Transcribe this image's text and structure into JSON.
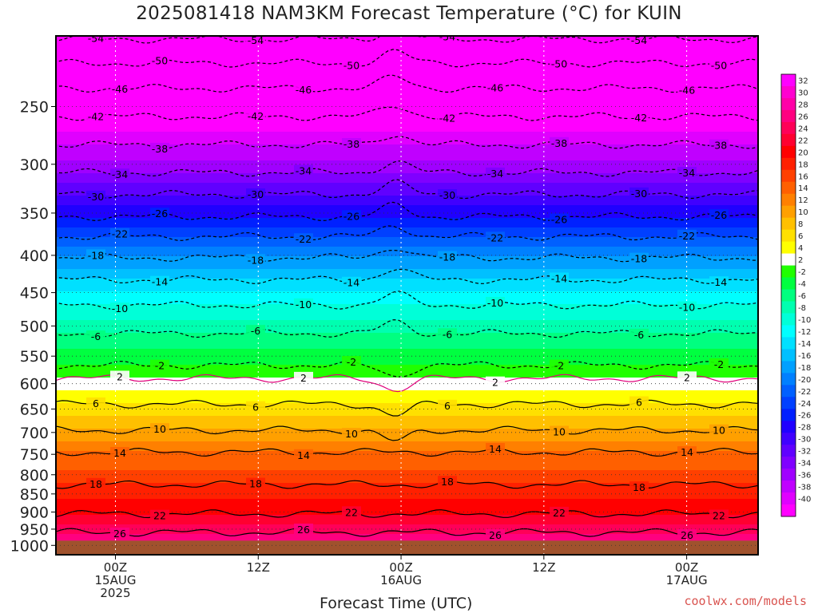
{
  "title": "2025081418 NAM3KM Forecast Temperature (°C) for KUIN",
  "credit": "coolwx.com/models",
  "chart_data": {
    "type": "heatmap",
    "title": "2025081418 NAM3KM Forecast Temperature (°C) for KUIN",
    "xlabel": "Forecast Time (UTC)",
    "ylabel": "",
    "x_range_hours": [
      -5,
      54
    ],
    "y_range_hpa": [
      200,
      1030
    ],
    "y_scale": "log",
    "grid": true,
    "x_ticks": [
      {
        "hour": 0,
        "line1": "00Z",
        "line2": "15AUG",
        "line3": "2025"
      },
      {
        "hour": 12,
        "line1": "12Z",
        "line2": "",
        "line3": ""
      },
      {
        "hour": 24,
        "line1": "00Z",
        "line2": "16AUG",
        "line3": ""
      },
      {
        "hour": 36,
        "line1": "12Z",
        "line2": "",
        "line3": ""
      },
      {
        "hour": 48,
        "line1": "00Z",
        "line2": "17AUG",
        "line3": ""
      }
    ],
    "y_ticks": [
      "250",
      "300",
      "350",
      "400",
      "450",
      "500",
      "550",
      "600",
      "650",
      "700",
      "750",
      "800",
      "850",
      "900",
      "950",
      "1000"
    ],
    "surface_pressure_hpa": 1000,
    "surface_color": "#a0522d",
    "colorbar": {
      "labels": [
        "32",
        "30",
        "28",
        "26",
        "24",
        "22",
        "20",
        "18",
        "16",
        "14",
        "12",
        "10",
        "8",
        "6",
        "4",
        "2",
        "-2",
        "-4",
        "-6",
        "-8",
        "-10",
        "-12",
        "-14",
        "-16",
        "-18",
        "-20",
        "-22",
        "-24",
        "-26",
        "-28",
        "-30",
        "-32",
        "-34",
        "-36",
        "-38",
        "-40"
      ],
      "colors": [
        "#ff00ff",
        "#ff00d0",
        "#ff00a8",
        "#ff0080",
        "#ff0058",
        "#ff0030",
        "#ff0000",
        "#ff2000",
        "#ff4000",
        "#ff6000",
        "#ff8000",
        "#ffa000",
        "#ffc000",
        "#ffe000",
        "#ffff00",
        "#ffffff",
        "#20ff00",
        "#00ff40",
        "#00ff80",
        "#00ffb0",
        "#00ffd8",
        "#00ffff",
        "#00e0ff",
        "#00c0ff",
        "#00a0ff",
        "#0080ff",
        "#0060ff",
        "#0040ff",
        "#0020ff",
        "#2000ff",
        "#4000ff",
        "#6000ff",
        "#8000ff",
        "#a000ff",
        "#c000ff",
        "#e000ff",
        "#ff00ff"
      ]
    },
    "isotherms": [
      {
        "temp": -54,
        "label": "-54",
        "p": 202
      },
      {
        "temp": -50,
        "label": "-50",
        "p": 218
      },
      {
        "temp": -46,
        "label": "-46",
        "p": 236
      },
      {
        "temp": -42,
        "label": "-42",
        "p": 258
      },
      {
        "temp": -38,
        "label": "-38",
        "p": 282
      },
      {
        "temp": -34,
        "label": "-34",
        "p": 308
      },
      {
        "temp": -30,
        "label": "-30",
        "p": 330
      },
      {
        "temp": -26,
        "label": "-26",
        "p": 354
      },
      {
        "temp": -22,
        "label": "-22",
        "p": 377
      },
      {
        "temp": -18,
        "label": "-18",
        "p": 403
      },
      {
        "temp": -14,
        "label": "-14",
        "p": 432
      },
      {
        "temp": -10,
        "label": "-10",
        "p": 468
      },
      {
        "temp": -6,
        "label": "-6",
        "p": 512
      },
      {
        "temp": -2,
        "label": "-2",
        "p": 566
      },
      {
        "temp": 2,
        "label": "2",
        "p": 590
      },
      {
        "temp": 6,
        "label": "6",
        "p": 640
      },
      {
        "temp": 10,
        "label": "10",
        "p": 695
      },
      {
        "temp": 14,
        "label": "14",
        "p": 745
      },
      {
        "temp": 18,
        "label": "18",
        "p": 825
      },
      {
        "temp": 22,
        "label": "22",
        "p": 905
      },
      {
        "temp": 26,
        "label": "26",
        "p": 960
      }
    ]
  }
}
